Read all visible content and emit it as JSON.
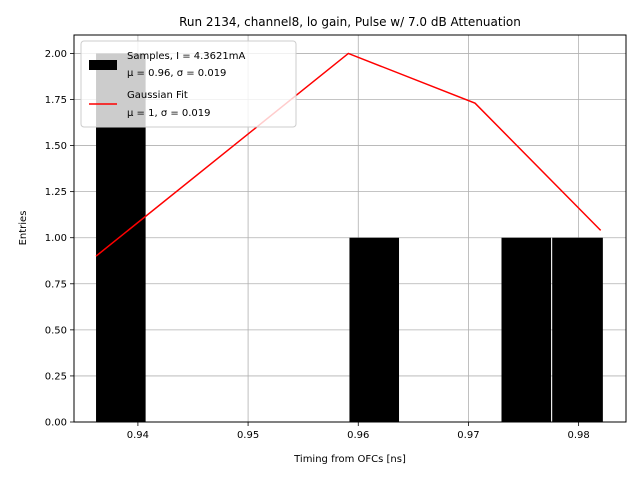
{
  "chart_data": {
    "type": "bar",
    "title": "Run 2134, channel8, lo gain, Pulse w/ 7.0 dB Attenuation",
    "xlabel": "Timing from OFCs [ns]",
    "ylabel": "Entries",
    "xlim": [
      0.9342,
      0.9843
    ],
    "ylim": [
      0.0,
      2.1
    ],
    "xticks": [
      0.94,
      0.95,
      0.96,
      0.97,
      0.98
    ],
    "xtick_labels": [
      "0.94",
      "0.95",
      "0.96",
      "0.97",
      "0.98"
    ],
    "yticks": [
      0.0,
      0.25,
      0.5,
      0.75,
      1.0,
      1.25,
      1.5,
      1.75,
      2.0
    ],
    "ytick_labels": [
      "0.00",
      "0.25",
      "0.50",
      "0.75",
      "1.00",
      "1.25",
      "1.50",
      "1.75",
      "2.00"
    ],
    "grid": true,
    "legend_location": "top-left",
    "bars": [
      {
        "x0": 0.9362,
        "x1": 0.9407,
        "value": 2
      },
      {
        "x0": 0.9592,
        "x1": 0.9637,
        "value": 1
      },
      {
        "x0": 0.973,
        "x1": 0.9775,
        "value": 1
      },
      {
        "x0": 0.9776,
        "x1": 0.9822,
        "value": 1
      }
    ],
    "series": [
      {
        "name": "Gaussian Fit",
        "color": "#ff0000",
        "x": [
          0.9362,
          0.9591,
          0.9706,
          0.982
        ],
        "y": [
          0.9,
          2.0,
          1.73,
          1.04
        ]
      }
    ],
    "legend": [
      {
        "kind": "bar",
        "color": "#000000",
        "line1": "Samples, I = 4.3621mA",
        "line2": "μ = 0.96, σ = 0.019"
      },
      {
        "kind": "line",
        "color": "#ff0000",
        "line1": "Gaussian Fit",
        "line2": "μ = 1, σ = 0.019"
      }
    ]
  }
}
